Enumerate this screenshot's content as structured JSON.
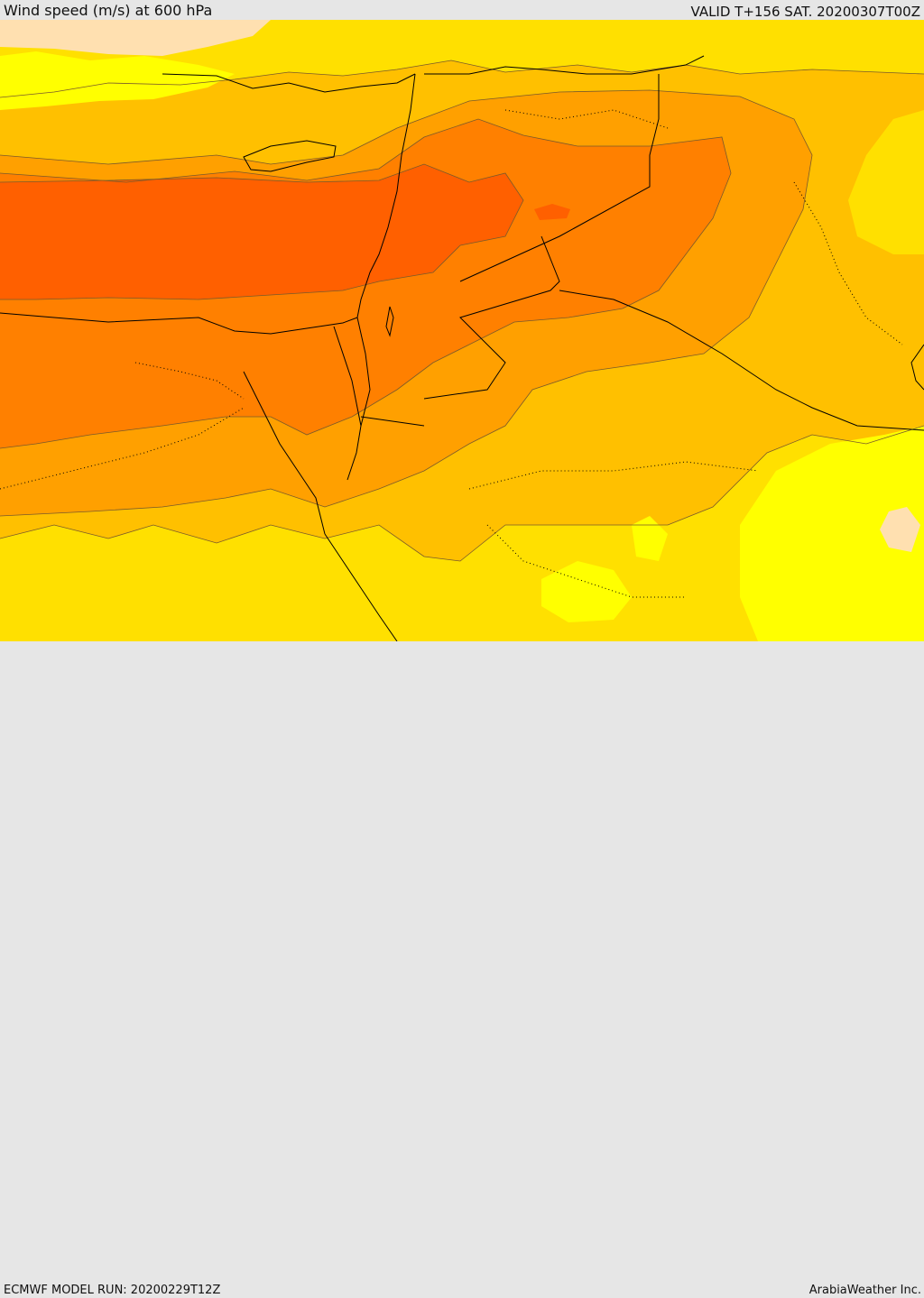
{
  "header": {
    "title": "Wind speed (m/s) at 600 hPa",
    "valid_time": "VALID T+156 SAT. 20200307T00Z"
  },
  "footer": {
    "model_run": "ECMWF MODEL RUN: 20200229T12Z",
    "credit": "ArabiaWeather Inc."
  },
  "map": {
    "field": "Wind speed",
    "level": "600 hPa",
    "palette": {
      "weakest": "#ffe0b0",
      "band_1": "#ffff00",
      "band_2": "#ffe000",
      "band_3": "#ffc000",
      "band_4": "#ffa000",
      "band_5": "#ff8000",
      "strongest": "#ff6000"
    },
    "coastline_color": "#000000",
    "contour_color": "#7a5a2a"
  }
}
